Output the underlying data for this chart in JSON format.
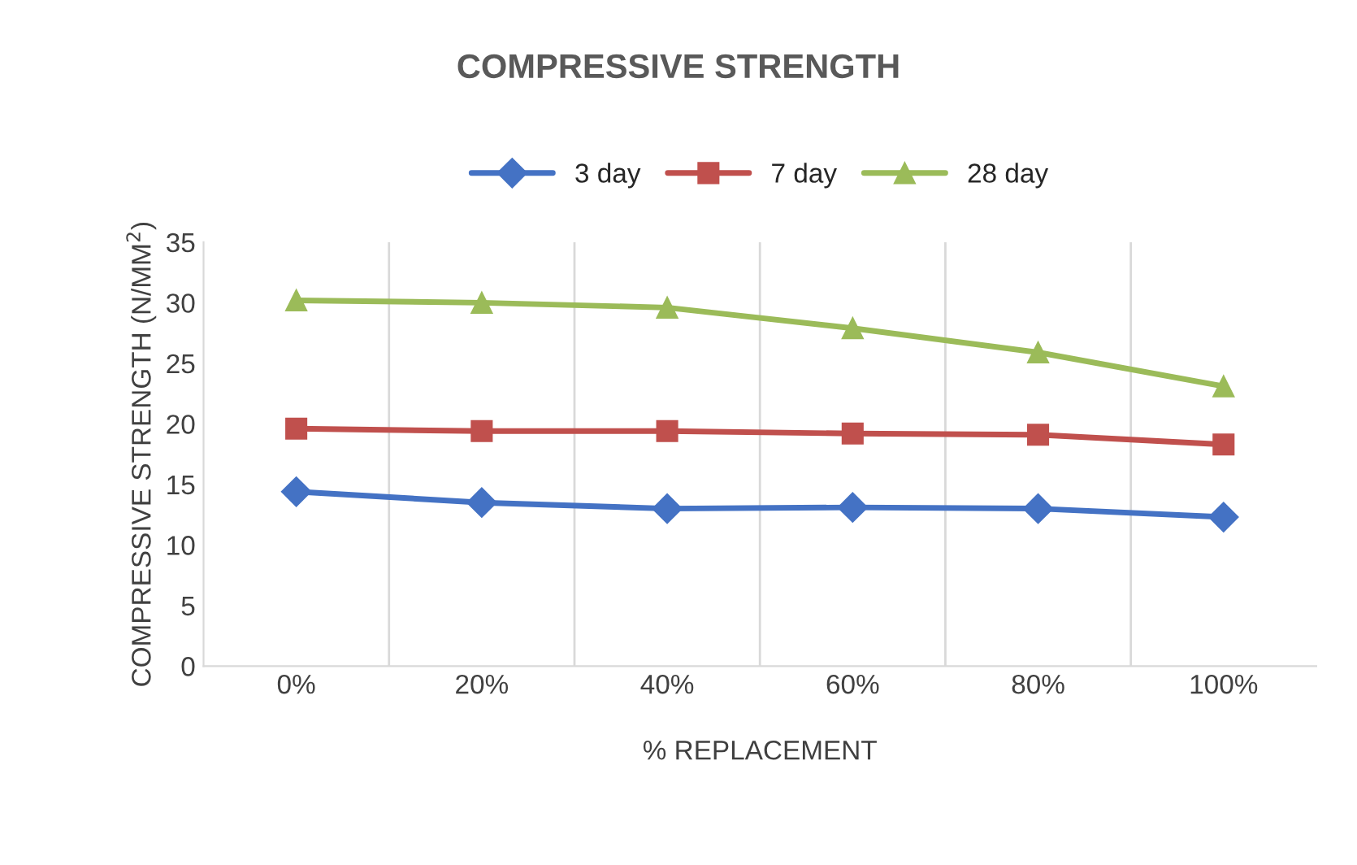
{
  "chart_data": {
    "type": "line",
    "title": "COMPRESSIVE STRENGTH",
    "xlabel": "% REPLACEMENT",
    "ylabel": "COMPRESSIVE STRENGTH (N/MM$^{2}$)",
    "categories": [
      "0%",
      "20%",
      "40%",
      "60%",
      "80%",
      "100%"
    ],
    "series": [
      {
        "name": "3 day",
        "color": "#4472c4",
        "marker": "diamond",
        "values": [
          14.4,
          13.5,
          13.0,
          13.1,
          13.0,
          12.3
        ]
      },
      {
        "name": "7 day",
        "color": "#c0504d",
        "marker": "square",
        "values": [
          19.6,
          19.4,
          19.4,
          19.2,
          19.1,
          18.3
        ]
      },
      {
        "name": "28 day",
        "color": "#9bbb59",
        "marker": "triangle",
        "values": [
          30.2,
          30.0,
          29.6,
          27.9,
          25.9,
          23.1
        ]
      }
    ],
    "ylim": [
      0,
      35
    ],
    "yticks": [
      0,
      5,
      10,
      15,
      20,
      25,
      30,
      35
    ],
    "grid": "x",
    "legend": "top"
  }
}
